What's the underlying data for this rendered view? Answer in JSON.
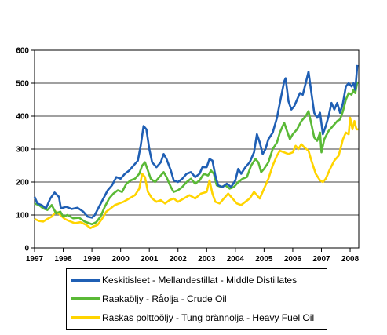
{
  "chart_data": {
    "type": "line",
    "ylim": [
      0,
      600
    ],
    "xlim": [
      1997,
      2008.3
    ],
    "yticks": [
      0,
      100,
      200,
      300,
      400,
      500,
      600
    ],
    "xticks": [
      "1997",
      "1998",
      "1999",
      "2000",
      "2001",
      "2002",
      "2003",
      "2004",
      "2005",
      "2006",
      "2007",
      "2008"
    ],
    "grid": "horizontal",
    "legend_placement": "bottom",
    "series": [
      {
        "name": "Keskitisleet - Mellandestillat - Middle Distillates",
        "color": "#1f5fb4",
        "points": [
          [
            1997.0,
            155
          ],
          [
            1997.1,
            135
          ],
          [
            1997.25,
            130
          ],
          [
            1997.4,
            120
          ],
          [
            1997.55,
            150
          ],
          [
            1997.7,
            168
          ],
          [
            1997.85,
            155
          ],
          [
            1997.92,
            120
          ],
          [
            1998.1,
            125
          ],
          [
            1998.3,
            118
          ],
          [
            1998.5,
            122
          ],
          [
            1998.7,
            110
          ],
          [
            1998.85,
            95
          ],
          [
            1999.0,
            92
          ],
          [
            1999.1,
            100
          ],
          [
            1999.25,
            125
          ],
          [
            1999.4,
            150
          ],
          [
            1999.55,
            175
          ],
          [
            1999.7,
            190
          ],
          [
            1999.85,
            215
          ],
          [
            2000.0,
            210
          ],
          [
            2000.15,
            225
          ],
          [
            2000.3,
            235
          ],
          [
            2000.45,
            250
          ],
          [
            2000.6,
            265
          ],
          [
            2000.7,
            310
          ],
          [
            2000.8,
            370
          ],
          [
            2000.9,
            360
          ],
          [
            2001.0,
            300
          ],
          [
            2001.1,
            260
          ],
          [
            2001.25,
            245
          ],
          [
            2001.4,
            260
          ],
          [
            2001.5,
            285
          ],
          [
            2001.6,
            270
          ],
          [
            2001.75,
            235
          ],
          [
            2001.85,
            205
          ],
          [
            2002.0,
            200
          ],
          [
            2002.15,
            210
          ],
          [
            2002.3,
            225
          ],
          [
            2002.45,
            230
          ],
          [
            2002.6,
            215
          ],
          [
            2002.75,
            225
          ],
          [
            2002.85,
            245
          ],
          [
            2003.0,
            245
          ],
          [
            2003.1,
            270
          ],
          [
            2003.2,
            265
          ],
          [
            2003.3,
            220
          ],
          [
            2003.4,
            190
          ],
          [
            2003.55,
            185
          ],
          [
            2003.7,
            195
          ],
          [
            2003.85,
            185
          ],
          [
            2004.0,
            205
          ],
          [
            2004.1,
            240
          ],
          [
            2004.2,
            225
          ],
          [
            2004.35,
            245
          ],
          [
            2004.5,
            260
          ],
          [
            2004.65,
            290
          ],
          [
            2004.75,
            345
          ],
          [
            2004.85,
            320
          ],
          [
            2004.95,
            285
          ],
          [
            2005.05,
            300
          ],
          [
            2005.15,
            330
          ],
          [
            2005.3,
            350
          ],
          [
            2005.45,
            395
          ],
          [
            2005.55,
            440
          ],
          [
            2005.7,
            505
          ],
          [
            2005.75,
            515
          ],
          [
            2005.85,
            445
          ],
          [
            2005.95,
            420
          ],
          [
            2006.05,
            430
          ],
          [
            2006.15,
            450
          ],
          [
            2006.25,
            470
          ],
          [
            2006.35,
            465
          ],
          [
            2006.45,
            500
          ],
          [
            2006.55,
            535
          ],
          [
            2006.65,
            470
          ],
          [
            2006.75,
            410
          ],
          [
            2006.85,
            395
          ],
          [
            2006.95,
            410
          ],
          [
            2007.05,
            345
          ],
          [
            2007.15,
            370
          ],
          [
            2007.25,
            400
          ],
          [
            2007.35,
            440
          ],
          [
            2007.45,
            420
          ],
          [
            2007.55,
            440
          ],
          [
            2007.65,
            410
          ],
          [
            2007.75,
            440
          ],
          [
            2007.85,
            490
          ],
          [
            2007.95,
            500
          ],
          [
            2008.05,
            490
          ],
          [
            2008.12,
            500
          ],
          [
            2008.18,
            480
          ],
          [
            2008.25,
            555
          ]
        ]
      },
      {
        "name": "Raakaöljy - Råolja - Crude Oil",
        "color": "#5ab936",
        "points": [
          [
            1997.0,
            135
          ],
          [
            1997.15,
            130
          ],
          [
            1997.3,
            120
          ],
          [
            1997.45,
            115
          ],
          [
            1997.6,
            130
          ],
          [
            1997.75,
            105
          ],
          [
            1997.9,
            110
          ],
          [
            1998.0,
            95
          ],
          [
            1998.15,
            100
          ],
          [
            1998.35,
            90
          ],
          [
            1998.55,
            92
          ],
          [
            1998.75,
            80
          ],
          [
            1998.9,
            75
          ],
          [
            1999.0,
            72
          ],
          [
            1999.15,
            78
          ],
          [
            1999.3,
            95
          ],
          [
            1999.45,
            125
          ],
          [
            1999.6,
            150
          ],
          [
            1999.75,
            165
          ],
          [
            1999.9,
            175
          ],
          [
            2000.05,
            170
          ],
          [
            2000.2,
            195
          ],
          [
            2000.35,
            205
          ],
          [
            2000.5,
            210
          ],
          [
            2000.65,
            225
          ],
          [
            2000.75,
            250
          ],
          [
            2000.85,
            260
          ],
          [
            2000.95,
            235
          ],
          [
            2001.05,
            210
          ],
          [
            2001.2,
            200
          ],
          [
            2001.35,
            215
          ],
          [
            2001.5,
            230
          ],
          [
            2001.6,
            215
          ],
          [
            2001.75,
            185
          ],
          [
            2001.85,
            170
          ],
          [
            2002.0,
            175
          ],
          [
            2002.15,
            185
          ],
          [
            2002.3,
            200
          ],
          [
            2002.45,
            210
          ],
          [
            2002.6,
            195
          ],
          [
            2002.75,
            205
          ],
          [
            2002.9,
            225
          ],
          [
            2003.05,
            220
          ],
          [
            2003.15,
            235
          ],
          [
            2003.25,
            225
          ],
          [
            2003.35,
            190
          ],
          [
            2003.5,
            185
          ],
          [
            2003.65,
            190
          ],
          [
            2003.8,
            180
          ],
          [
            2003.95,
            185
          ],
          [
            2004.1,
            200
          ],
          [
            2004.25,
            210
          ],
          [
            2004.4,
            215
          ],
          [
            2004.55,
            250
          ],
          [
            2004.7,
            270
          ],
          [
            2004.8,
            260
          ],
          [
            2004.9,
            230
          ],
          [
            2005.0,
            240
          ],
          [
            2005.15,
            260
          ],
          [
            2005.3,
            300
          ],
          [
            2005.45,
            320
          ],
          [
            2005.55,
            350
          ],
          [
            2005.7,
            380
          ],
          [
            2005.8,
            355
          ],
          [
            2005.9,
            330
          ],
          [
            2006.0,
            345
          ],
          [
            2006.15,
            360
          ],
          [
            2006.3,
            385
          ],
          [
            2006.45,
            400
          ],
          [
            2006.55,
            415
          ],
          [
            2006.65,
            375
          ],
          [
            2006.75,
            335
          ],
          [
            2006.85,
            325
          ],
          [
            2006.95,
            350
          ],
          [
            2007.0,
            290
          ],
          [
            2007.1,
            330
          ],
          [
            2007.25,
            355
          ],
          [
            2007.4,
            370
          ],
          [
            2007.55,
            385
          ],
          [
            2007.65,
            390
          ],
          [
            2007.75,
            415
          ],
          [
            2007.85,
            450
          ],
          [
            2007.95,
            470
          ],
          [
            2008.05,
            465
          ],
          [
            2008.12,
            480
          ],
          [
            2008.18,
            470
          ],
          [
            2008.25,
            505
          ]
        ]
      },
      {
        "name": "Raskas polttoöljy - Tung brännolja - Heavy Fuel Oil",
        "color": "#ffd400",
        "points": [
          [
            1997.0,
            88
          ],
          [
            1997.15,
            82
          ],
          [
            1997.3,
            80
          ],
          [
            1997.45,
            88
          ],
          [
            1997.6,
            95
          ],
          [
            1997.75,
            110
          ],
          [
            1997.9,
            100
          ],
          [
            1998.05,
            88
          ],
          [
            1998.2,
            82
          ],
          [
            1998.4,
            75
          ],
          [
            1998.6,
            78
          ],
          [
            1998.8,
            70
          ],
          [
            1998.95,
            60
          ],
          [
            1999.05,
            65
          ],
          [
            1999.2,
            70
          ],
          [
            1999.35,
            88
          ],
          [
            1999.5,
            110
          ],
          [
            1999.65,
            120
          ],
          [
            1999.8,
            130
          ],
          [
            1999.95,
            135
          ],
          [
            2000.1,
            140
          ],
          [
            2000.3,
            150
          ],
          [
            2000.5,
            160
          ],
          [
            2000.65,
            180
          ],
          [
            2000.75,
            225
          ],
          [
            2000.85,
            215
          ],
          [
            2000.95,
            170
          ],
          [
            2001.1,
            150
          ],
          [
            2001.25,
            140
          ],
          [
            2001.4,
            145
          ],
          [
            2001.55,
            135
          ],
          [
            2001.7,
            145
          ],
          [
            2001.85,
            150
          ],
          [
            2002.0,
            140
          ],
          [
            2002.2,
            150
          ],
          [
            2002.4,
            160
          ],
          [
            2002.6,
            150
          ],
          [
            2002.8,
            165
          ],
          [
            2003.0,
            170
          ],
          [
            2003.1,
            205
          ],
          [
            2003.2,
            165
          ],
          [
            2003.3,
            140
          ],
          [
            2003.45,
            135
          ],
          [
            2003.6,
            150
          ],
          [
            2003.75,
            165
          ],
          [
            2003.9,
            150
          ],
          [
            2004.05,
            135
          ],
          [
            2004.2,
            130
          ],
          [
            2004.35,
            140
          ],
          [
            2004.5,
            150
          ],
          [
            2004.65,
            170
          ],
          [
            2004.75,
            160
          ],
          [
            2004.85,
            150
          ],
          [
            2005.0,
            180
          ],
          [
            2005.15,
            210
          ],
          [
            2005.3,
            250
          ],
          [
            2005.45,
            280
          ],
          [
            2005.55,
            295
          ],
          [
            2005.7,
            290
          ],
          [
            2005.85,
            285
          ],
          [
            2006.0,
            290
          ],
          [
            2006.1,
            310
          ],
          [
            2006.2,
            300
          ],
          [
            2006.3,
            315
          ],
          [
            2006.4,
            305
          ],
          [
            2006.55,
            295
          ],
          [
            2006.65,
            265
          ],
          [
            2006.8,
            225
          ],
          [
            2006.95,
            205
          ],
          [
            2007.05,
            200
          ],
          [
            2007.15,
            210
          ],
          [
            2007.3,
            240
          ],
          [
            2007.45,
            265
          ],
          [
            2007.6,
            280
          ],
          [
            2007.75,
            330
          ],
          [
            2007.85,
            350
          ],
          [
            2007.95,
            345
          ],
          [
            2008.0,
            395
          ],
          [
            2008.08,
            360
          ],
          [
            2008.15,
            385
          ],
          [
            2008.22,
            360
          ],
          [
            2008.28,
            360
          ]
        ]
      }
    ]
  }
}
